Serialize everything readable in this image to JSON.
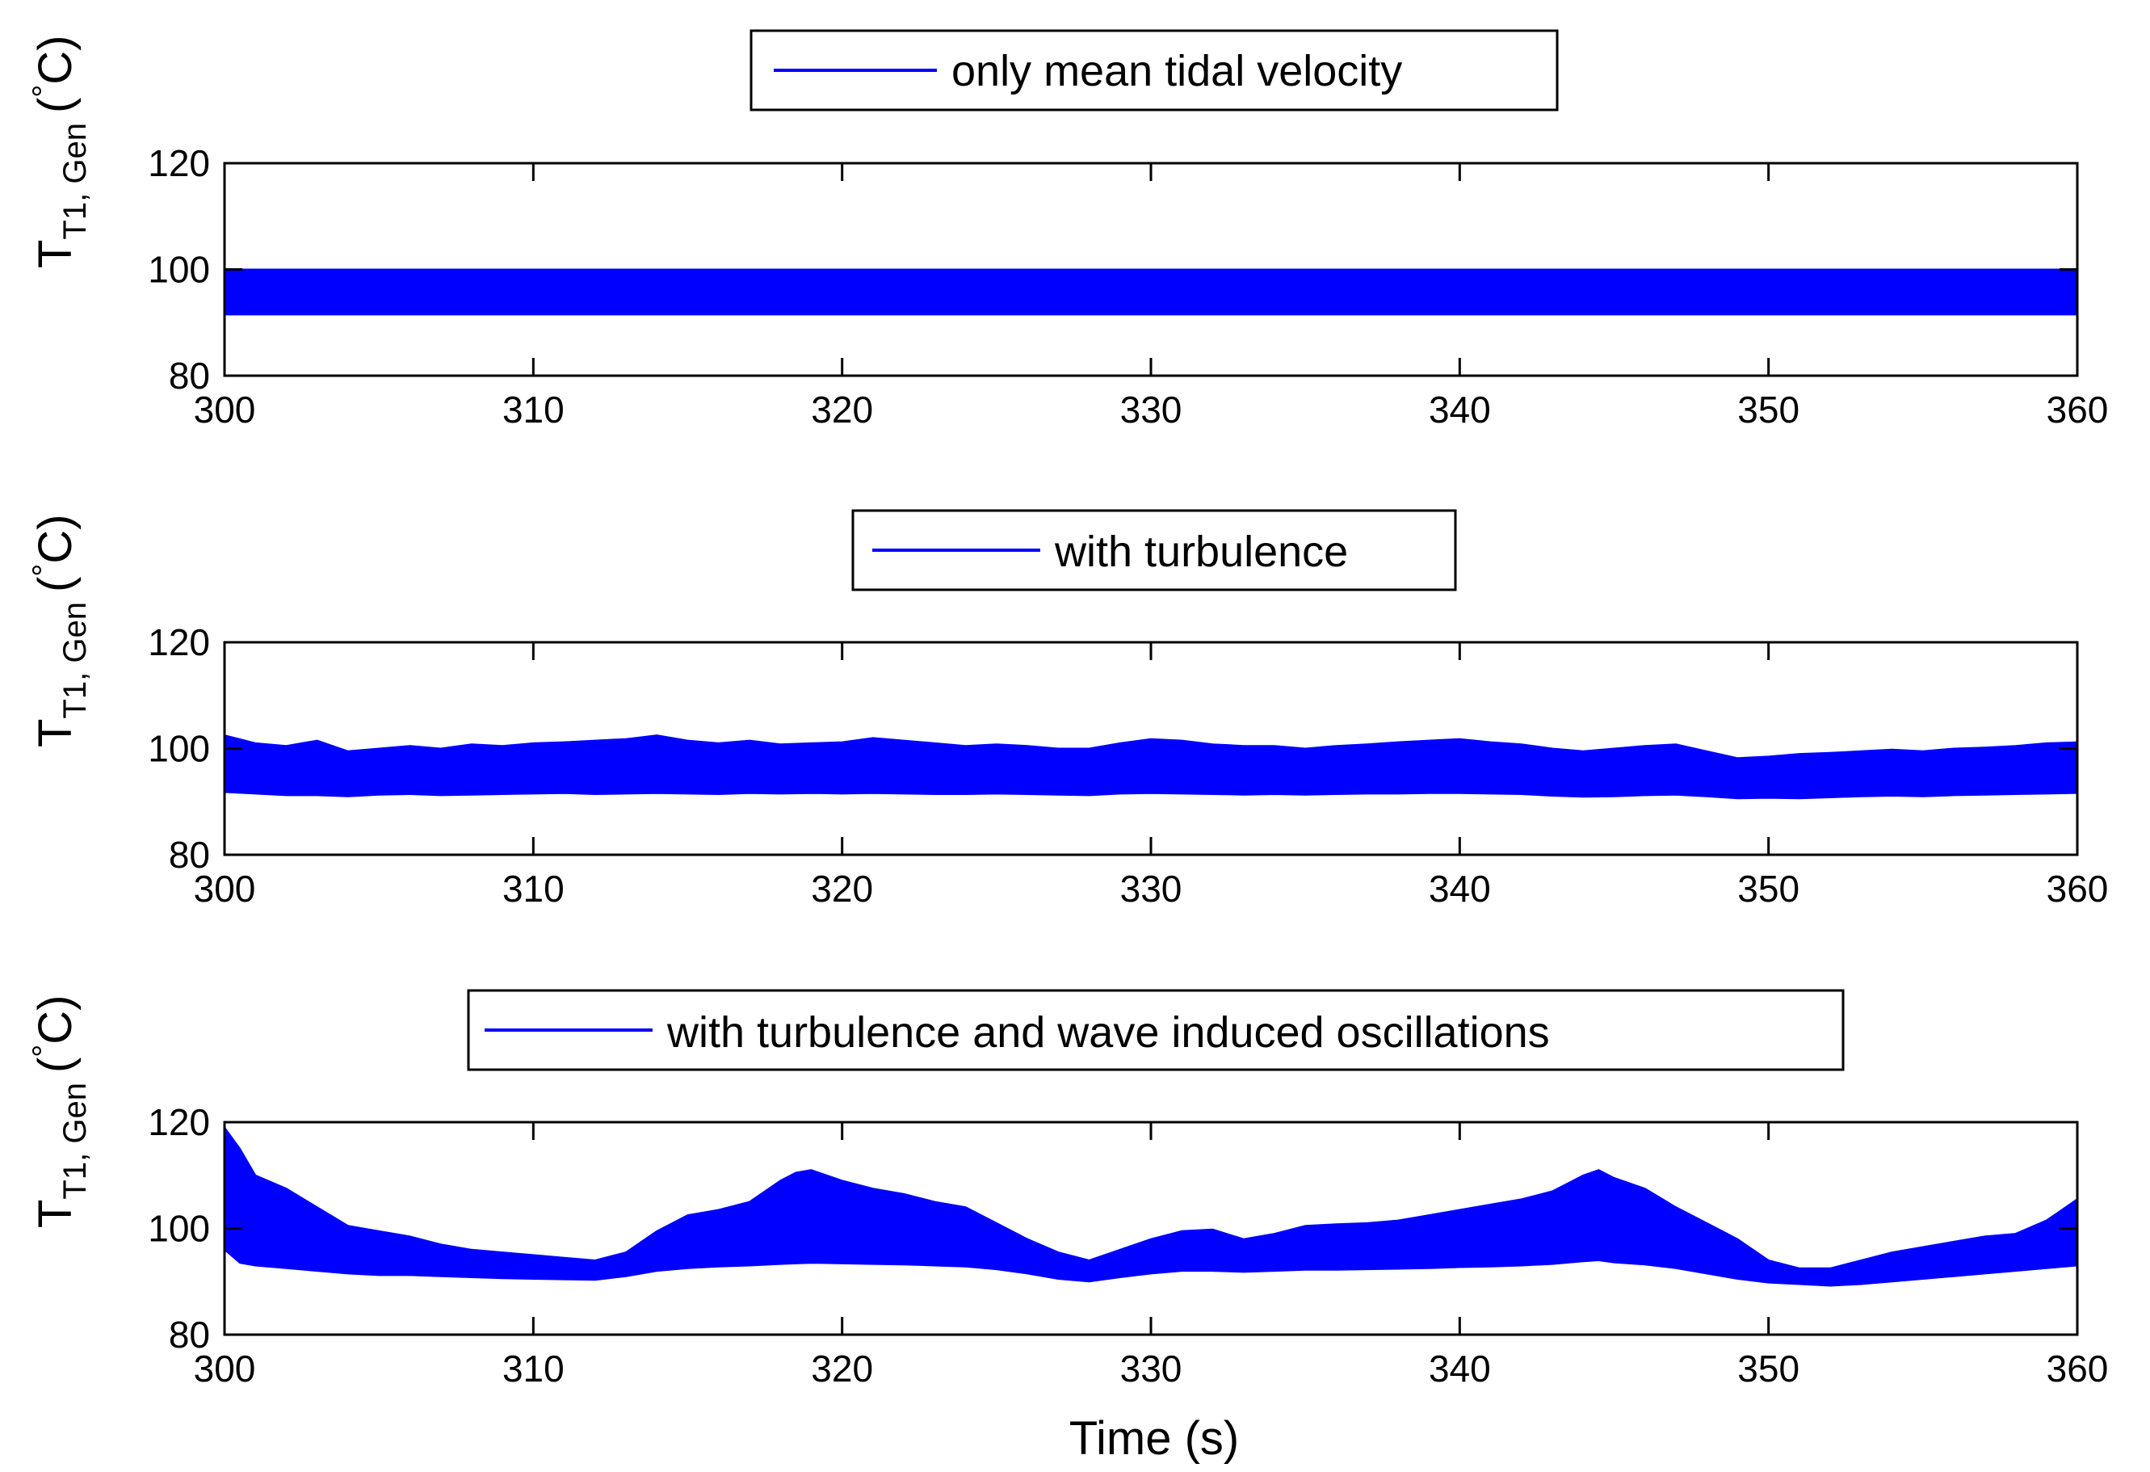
{
  "chart_data": [
    {
      "type": "area",
      "name": "panel-mean-tidal",
      "legend": "only mean tidal velocity",
      "series_color": "#0000ff",
      "ylabel": {
        "main": "T",
        "sub": "T1, Gen",
        "unit": "(",
        "deg": "°",
        "unit_end": "C)"
      },
      "xlim": [
        300,
        360
      ],
      "ylim": [
        80,
        120
      ],
      "xticks": [
        "300",
        "310",
        "320",
        "330",
        "340",
        "350",
        "360"
      ],
      "yticks": [
        "80",
        "100",
        "120"
      ],
      "envelope": {
        "x": [
          300,
          310,
          320,
          330,
          340,
          350,
          360
        ],
        "upper": [
          100,
          100,
          100,
          100,
          100,
          100,
          100
        ],
        "lower": [
          91.5,
          91.5,
          91.5,
          91.5,
          91.5,
          91.5,
          91.5
        ]
      }
    },
    {
      "type": "area",
      "name": "panel-turbulence",
      "legend": "with turbulence",
      "series_color": "#0000ff",
      "ylabel": {
        "main": "T",
        "sub": "T1, Gen",
        "unit": "(",
        "deg": "°",
        "unit_end": "C)"
      },
      "xlim": [
        300,
        360
      ],
      "ylim": [
        80,
        120
      ],
      "xticks": [
        "300",
        "310",
        "320",
        "330",
        "340",
        "350",
        "360"
      ],
      "yticks": [
        "80",
        "100",
        "120"
      ],
      "envelope": {
        "x": [
          300,
          301,
          302,
          303,
          304,
          305,
          306,
          307,
          308,
          309,
          310,
          311,
          312,
          313,
          314,
          315,
          316,
          317,
          318,
          319,
          320,
          321,
          322,
          323,
          324,
          325,
          326,
          327,
          328,
          329,
          330,
          331,
          332,
          333,
          334,
          335,
          336,
          337,
          338,
          339,
          340,
          341,
          342,
          343,
          344,
          345,
          346,
          347,
          348,
          349,
          350,
          351,
          352,
          353,
          354,
          355,
          356,
          357,
          358,
          359,
          360
        ],
        "upper": [
          102.5,
          101,
          100.5,
          101.5,
          99.5,
          100,
          100.5,
          100,
          100.8,
          100.5,
          101,
          101.2,
          101.5,
          101.8,
          102.5,
          101.5,
          101,
          101.5,
          100.8,
          101,
          101.2,
          102,
          101.5,
          101,
          100.5,
          100.8,
          100.5,
          100,
          100,
          101,
          101.8,
          101.5,
          100.8,
          100.5,
          100.5,
          100,
          100.5,
          100.8,
          101.2,
          101.5,
          101.8,
          101.2,
          100.8,
          100,
          99.5,
          100,
          100.5,
          100.8,
          99.5,
          98.2,
          98.5,
          99,
          99.2,
          99.5,
          99.8,
          99.5,
          100,
          100.2,
          100.5,
          101,
          101.2
        ],
        "lower": [
          91.8,
          91.5,
          91.2,
          91.2,
          91,
          91.3,
          91.4,
          91.2,
          91.3,
          91.4,
          91.5,
          91.6,
          91.4,
          91.5,
          91.6,
          91.5,
          91.4,
          91.6,
          91.5,
          91.6,
          91.5,
          91.6,
          91.5,
          91.4,
          91.4,
          91.5,
          91.4,
          91.3,
          91.2,
          91.5,
          91.6,
          91.5,
          91.4,
          91.3,
          91.4,
          91.3,
          91.4,
          91.5,
          91.5,
          91.6,
          91.6,
          91.5,
          91.4,
          91.1,
          90.9,
          91,
          91.2,
          91.3,
          91,
          90.6,
          90.7,
          90.6,
          90.8,
          91,
          91.1,
          91,
          91.2,
          91.3,
          91.4,
          91.5,
          91.6
        ]
      }
    },
    {
      "type": "area",
      "name": "panel-turbulence-wave",
      "legend": "with turbulence and wave induced oscillations",
      "series_color": "#0000ff",
      "ylabel": {
        "main": "T",
        "sub": "T1, Gen",
        "unit": "(",
        "deg": "°",
        "unit_end": "C)"
      },
      "xlabel": "Time (s)",
      "xlim": [
        300,
        360
      ],
      "ylim": [
        80,
        120
      ],
      "xticks": [
        "300",
        "310",
        "320",
        "330",
        "340",
        "350",
        "360"
      ],
      "yticks": [
        "80",
        "100",
        "120"
      ],
      "envelope": {
        "x": [
          300,
          300.5,
          301,
          302,
          303,
          304,
          305,
          306,
          307,
          308,
          309,
          310,
          311,
          312,
          313,
          314,
          315,
          316,
          317,
          318,
          318.5,
          319,
          320,
          321,
          322,
          323,
          324,
          325,
          326,
          327,
          328,
          329,
          330,
          331,
          332,
          333,
          334,
          335,
          336,
          337,
          338,
          339,
          340,
          341,
          342,
          343,
          344,
          344.5,
          345,
          346,
          347,
          348,
          349,
          350,
          351,
          352,
          353,
          354,
          355,
          356,
          357,
          358,
          359,
          360
        ],
        "upper": [
          119,
          115,
          110,
          107.5,
          104,
          100.5,
          99.5,
          98.5,
          97,
          96,
          95.5,
          95,
          94.5,
          94,
          95.5,
          99.5,
          102.5,
          103.5,
          105,
          109,
          110.5,
          111,
          109,
          107.5,
          106.5,
          105,
          104,
          101,
          98,
          95.5,
          94,
          96,
          98,
          99.5,
          99.8,
          98,
          99,
          100.5,
          100.8,
          101,
          101.5,
          102.5,
          103.5,
          104.5,
          105.5,
          107,
          110,
          111,
          109.5,
          107.5,
          104,
          101,
          98,
          94,
          92.5,
          92.5,
          94,
          95.5,
          96.5,
          97.5,
          98.5,
          99,
          101.5,
          105.5
        ],
        "lower": [
          96,
          93.5,
          93,
          92.5,
          92,
          91.5,
          91.2,
          91.2,
          91,
          90.8,
          90.6,
          90.5,
          90.4,
          90.3,
          91,
          92,
          92.5,
          92.8,
          93,
          93.3,
          93.4,
          93.5,
          93.4,
          93.3,
          93.2,
          93,
          92.8,
          92.3,
          91.5,
          90.5,
          90,
          90.8,
          91.5,
          92,
          92,
          91.8,
          92,
          92.2,
          92.2,
          92.3,
          92.4,
          92.5,
          92.7,
          92.8,
          93,
          93.3,
          93.8,
          94,
          93.6,
          93.2,
          92.5,
          91.5,
          90.5,
          89.8,
          89.5,
          89.2,
          89.5,
          90,
          90.5,
          91,
          91.5,
          92,
          92.5,
          93
        ]
      }
    }
  ]
}
